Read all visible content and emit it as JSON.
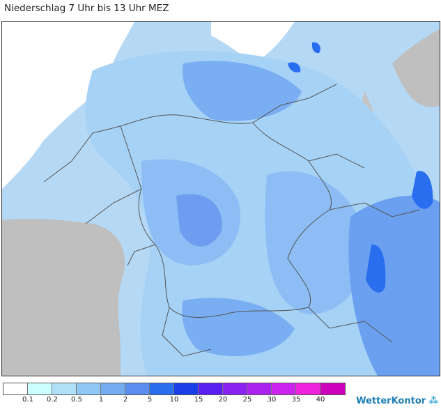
{
  "title": "Niederschlag 7 Uhr bis 13 Uhr MEZ",
  "legend": {
    "colors": [
      "#ffffff",
      "#ccffff",
      "#b0e0f8",
      "#90c8f4",
      "#74aef0",
      "#5c8ef0",
      "#2a6ef0",
      "#1a3ee8",
      "#5a1ef0",
      "#8a22f0",
      "#aa22ee",
      "#cc22ee",
      "#ee22dd",
      "#cc00bb"
    ],
    "labels": [
      "0.1",
      "0.2",
      "0.5",
      "1",
      "2",
      "5",
      "10",
      "15",
      "20",
      "25",
      "30",
      "35",
      "40"
    ]
  },
  "brand": "WetterKontor"
}
